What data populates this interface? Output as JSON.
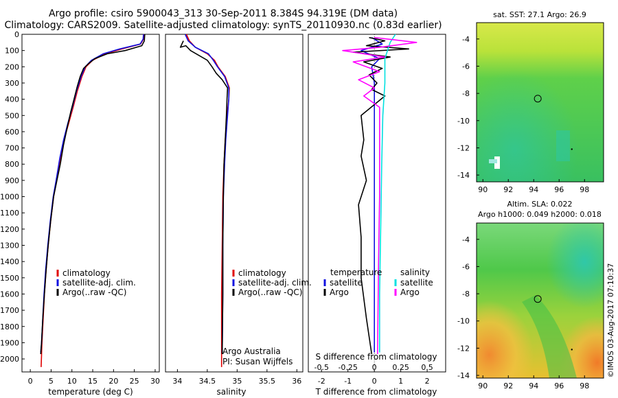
{
  "title": {
    "line1": "Argo profile: csiro 5900043_313 30-Sep-2011 8.384S 94.319E (DM data)",
    "line2": "Climatology: CARS2009. Satellite-adjusted climatology: synTS_20110930.nc (0.83d earlier)"
  },
  "colors": {
    "climatology": "#e00000",
    "satellite": "#1010e0",
    "argo": "#000000",
    "salinity_satellite": "#00e0e0",
    "salinity_argo": "#ff00ff"
  },
  "chart_data": [
    {
      "type": "line",
      "id": "temperature",
      "xlabel": "temperature (deg C)",
      "ylabel": "",
      "xlim": [
        -2,
        31
      ],
      "ylim": [
        2080,
        0
      ],
      "xticks": [
        "0",
        "5",
        "10",
        "15",
        "20",
        "25",
        "30"
      ],
      "yticks": [
        "0",
        "100",
        "200",
        "300",
        "400",
        "500",
        "600",
        "700",
        "800",
        "900",
        "1000",
        "1100",
        "1200",
        "1300",
        "1400",
        "1500",
        "1600",
        "1700",
        "1800",
        "1900",
        "2000"
      ],
      "legend": [
        "climatology",
        "satellite-adj. clim.",
        "Argo(..raw -QC)"
      ],
      "series": [
        {
          "name": "climatology",
          "points": [
            [
              27.3,
              0
            ],
            [
              27.2,
              30
            ],
            [
              26.5,
              60
            ],
            [
              22,
              90
            ],
            [
              18,
              120
            ],
            [
              15,
              160
            ],
            [
              13.4,
              200
            ],
            [
              12.4,
              260
            ],
            [
              11.3,
              350
            ],
            [
              10.3,
              450
            ],
            [
              9.2,
              550
            ],
            [
              8.1,
              650
            ],
            [
              7.2,
              760
            ],
            [
              6.3,
              900
            ],
            [
              5.6,
              1000
            ],
            [
              4.9,
              1150
            ],
            [
              4.3,
              1300
            ],
            [
              3.8,
              1450
            ],
            [
              3.4,
              1600
            ],
            [
              3.1,
              1750
            ],
            [
              2.8,
              1900
            ],
            [
              2.6,
              2050
            ]
          ]
        },
        {
          "name": "satellite-adj. clim.",
          "points": [
            [
              27.2,
              0
            ],
            [
              27.1,
              30
            ],
            [
              26.4,
              60
            ],
            [
              21.5,
              90
            ],
            [
              17.5,
              120
            ],
            [
              14.7,
              160
            ],
            [
              13.2,
              200
            ],
            [
              12.2,
              260
            ],
            [
              11.1,
              350
            ],
            [
              10.1,
              450
            ],
            [
              9.0,
              550
            ],
            [
              8.0,
              650
            ],
            [
              7.1,
              760
            ],
            [
              6.2,
              900
            ],
            [
              5.5,
              1000
            ],
            [
              4.8,
              1150
            ],
            [
              4.2,
              1300
            ],
            [
              3.7,
              1450
            ],
            [
              3.3,
              1600
            ],
            [
              3.0,
              1750
            ],
            [
              2.7,
              1900
            ],
            [
              2.5,
              1960
            ]
          ]
        },
        {
          "name": "Argo(..raw -QC)",
          "points": [
            [
              27.5,
              0
            ],
            [
              27.4,
              40
            ],
            [
              26.8,
              70
            ],
            [
              22.8,
              100
            ],
            [
              18.5,
              120
            ],
            [
              15.5,
              150
            ],
            [
              14,
              180
            ],
            [
              12.8,
              210
            ],
            [
              12,
              260
            ],
            [
              11.3,
              320
            ],
            [
              10.5,
              400
            ],
            [
              9.7,
              480
            ],
            [
              8.9,
              570
            ],
            [
              8.0,
              680
            ],
            [
              7.2,
              800
            ],
            [
              6.4,
              900
            ],
            [
              5.6,
              1000
            ],
            [
              4.9,
              1150
            ],
            [
              4.3,
              1300
            ],
            [
              3.8,
              1450
            ],
            [
              3.4,
              1600
            ],
            [
              3.0,
              1750
            ],
            [
              2.7,
              1900
            ],
            [
              2.5,
              1970
            ]
          ]
        }
      ]
    },
    {
      "type": "line",
      "id": "salinity",
      "xlabel": "salinity",
      "ylabel": "",
      "xlim": [
        33.8,
        36.1
      ],
      "ylim": [
        2080,
        0
      ],
      "xticks": [
        "34",
        "34.5",
        "35",
        "35.5",
        "36"
      ],
      "legend": [
        "climatology",
        "satellite-adj. clim.",
        "Argo(..raw -QC)"
      ],
      "annotation": {
        "line1": "Argo Australia",
        "line2": "PI: Susan Wijffels"
      },
      "series": [
        {
          "name": "climatology",
          "points": [
            [
              34.15,
              0
            ],
            [
              34.2,
              40
            ],
            [
              34.3,
              80
            ],
            [
              34.5,
              120
            ],
            [
              34.62,
              160
            ],
            [
              34.68,
              200
            ],
            [
              34.8,
              260
            ],
            [
              34.87,
              330
            ],
            [
              34.86,
              400
            ],
            [
              34.83,
              500
            ],
            [
              34.8,
              650
            ],
            [
              34.78,
              800
            ],
            [
              34.76,
              1000
            ],
            [
              34.75,
              1300
            ],
            [
              34.74,
              1600
            ],
            [
              34.74,
              2050
            ]
          ]
        },
        {
          "name": "satellite-adj. clim.",
          "points": [
            [
              34.13,
              0
            ],
            [
              34.18,
              40
            ],
            [
              34.3,
              80
            ],
            [
              34.52,
              120
            ],
            [
              34.6,
              160
            ],
            [
              34.67,
              200
            ],
            [
              34.79,
              260
            ],
            [
              34.86,
              330
            ],
            [
              34.86,
              400
            ],
            [
              34.84,
              500
            ],
            [
              34.81,
              650
            ],
            [
              34.79,
              800
            ],
            [
              34.77,
              1000
            ],
            [
              34.76,
              1300
            ],
            [
              34.76,
              1600
            ],
            [
              34.75,
              1960
            ]
          ]
        },
        {
          "name": "Argo(..raw -QC)",
          "points": [
            [
              34.1,
              40
            ],
            [
              34.05,
              80
            ],
            [
              34.14,
              70
            ],
            [
              34.22,
              100
            ],
            [
              34.5,
              160
            ],
            [
              34.58,
              200
            ],
            [
              34.65,
              240
            ],
            [
              34.75,
              280
            ],
            [
              34.84,
              330
            ],
            [
              34.83,
              400
            ],
            [
              34.82,
              500
            ],
            [
              34.8,
              650
            ],
            [
              34.78,
              800
            ],
            [
              34.77,
              1000
            ],
            [
              34.76,
              1300
            ],
            [
              34.76,
              1600
            ],
            [
              34.75,
              1970
            ]
          ]
        }
      ]
    },
    {
      "type": "line",
      "id": "difference",
      "xlabel": "T difference from climatology",
      "xlabel2": "S difference from climatology",
      "xlim": [
        -2.5,
        2.7
      ],
      "ylim": [
        2080,
        0
      ],
      "xticks": [
        "-2",
        "-1",
        "0",
        "1",
        "2"
      ],
      "xticks2": [
        "-0.5",
        "-0.25",
        "0",
        "0.25",
        "0.5"
      ],
      "legend_temperature_title": "temperature",
      "legend_salinity_title": "salinity",
      "legend": [
        "satellite",
        "Argo",
        "satellite",
        "Argo"
      ],
      "series": [
        {
          "name": "temperature satellite",
          "points": [
            [
              -0.1,
              20
            ],
            [
              0.3,
              60
            ],
            [
              -0.5,
              100
            ],
            [
              0.2,
              150
            ],
            [
              -0.1,
              200
            ],
            [
              0,
              300
            ],
            [
              0,
              600
            ],
            [
              0,
              1000
            ],
            [
              0,
              1500
            ],
            [
              0,
              1960
            ]
          ]
        },
        {
          "name": "temperature Argo",
          "points": [
            [
              -0.2,
              20
            ],
            [
              0.4,
              40
            ],
            [
              -0.3,
              70
            ],
            [
              1.3,
              90
            ],
            [
              -0.8,
              110
            ],
            [
              0.6,
              140
            ],
            [
              -0.4,
              170
            ],
            [
              0.3,
              210
            ],
            [
              -0.2,
              250
            ],
            [
              0.1,
              300
            ],
            [
              -0.1,
              340
            ],
            [
              0.4,
              380
            ],
            [
              -0.5,
              500
            ],
            [
              -0.4,
              650
            ],
            [
              -0.5,
              750
            ],
            [
              -0.3,
              900
            ],
            [
              -0.6,
              1050
            ],
            [
              -0.5,
              1250
            ],
            [
              -0.5,
              1500
            ],
            [
              -0.3,
              1750
            ],
            [
              -0.1,
              1970
            ]
          ]
        },
        {
          "name": "salinity satellite",
          "points": [
            [
              0.2,
              0
            ],
            [
              0.15,
              50
            ],
            [
              0.1,
              150
            ],
            [
              0.1,
              300
            ],
            [
              0.08,
              500
            ],
            [
              0.07,
              800
            ],
            [
              0.06,
              1200
            ],
            [
              0.05,
              1600
            ],
            [
              0.05,
              1960
            ]
          ]
        },
        {
          "name": "salinity Argo",
          "points": [
            [
              0,
              20
            ],
            [
              0.4,
              50
            ],
            [
              0.05,
              80
            ],
            [
              -0.3,
              100
            ],
            [
              0.1,
              140
            ],
            [
              -0.2,
              170
            ],
            [
              0.05,
              230
            ],
            [
              -0.15,
              280
            ],
            [
              0,
              330
            ],
            [
              -0.1,
              380
            ],
            [
              0.05,
              450
            ],
            [
              0.05,
              700
            ],
            [
              0.05,
              1000
            ],
            [
              0.04,
              1400
            ],
            [
              0.03,
              1970
            ]
          ]
        }
      ]
    },
    {
      "type": "heatmap",
      "id": "sst-map",
      "title": "sat. SST: 27.1  Argo: 26.9",
      "xlim": [
        89.5,
        99.5
      ],
      "ylim": [
        -14.5,
        -2.8
      ],
      "xticks": [
        "90",
        "92",
        "94",
        "96",
        "98"
      ],
      "yticks": [
        "-4",
        "-6",
        "-8",
        "-10",
        "-12",
        "-14"
      ],
      "marker": [
        94.319,
        -8.384
      ]
    },
    {
      "type": "heatmap",
      "id": "sla-map",
      "title_line1": "Altim. SLA: 0.022",
      "title_line2": "Argo h1000: 0.049 h2000: 0.018",
      "xlim": [
        89.5,
        99.5
      ],
      "ylim": [
        -14.2,
        -2.8
      ],
      "xticks": [
        "90",
        "92",
        "94",
        "96",
        "98"
      ],
      "yticks": [
        "-4",
        "-6",
        "-8",
        "-10",
        "-12",
        "-14"
      ],
      "marker": [
        94.319,
        -8.384
      ]
    }
  ],
  "footer": "©IMOS 03-Aug-2017 07:10:37"
}
